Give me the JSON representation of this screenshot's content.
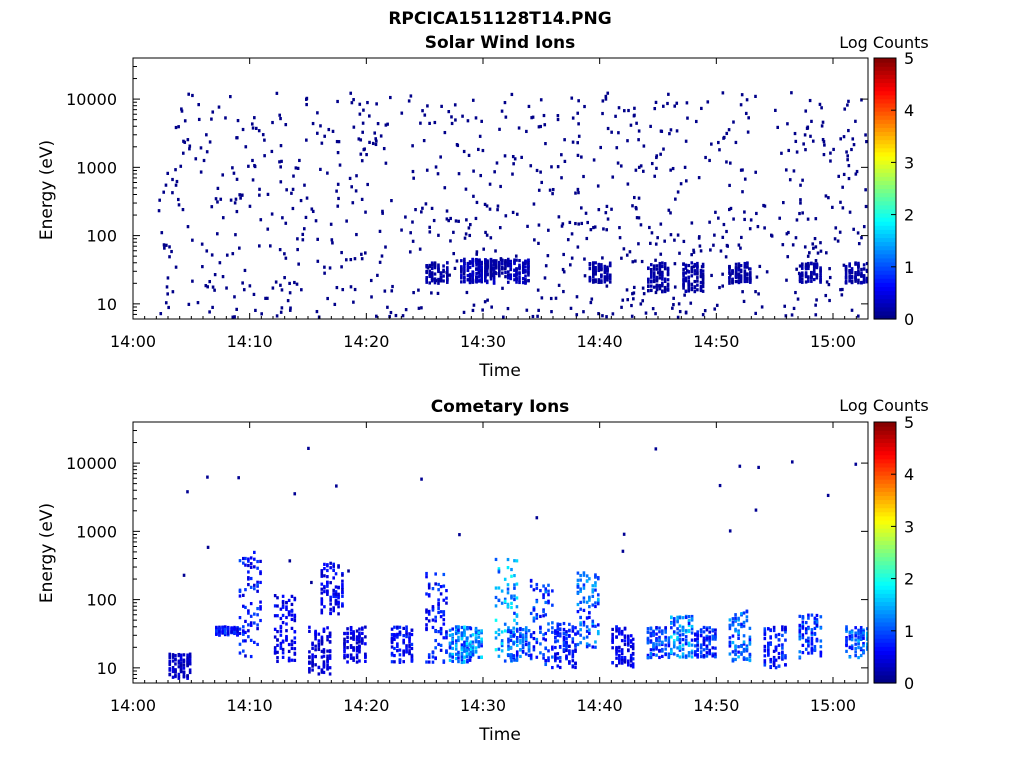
{
  "figure": {
    "title": "RPCICA151128T14.PNG"
  },
  "colorbar": {
    "label": "Log Counts",
    "min": 0,
    "max": 5,
    "ticks": [
      "0",
      "1",
      "2",
      "3",
      "4",
      "5"
    ],
    "colormap": [
      "#00007f",
      "#0000ff",
      "#007fff",
      "#00ffff",
      "#7fff7f",
      "#ffff00",
      "#ff7f00",
      "#ff0000",
      "#7f0000"
    ]
  },
  "chart_data": [
    {
      "type": "heatmap",
      "title": "Solar Wind Ions",
      "xlabel": "Time",
      "ylabel": "Energy (eV)",
      "xlim_minutes": [
        0,
        63
      ],
      "ylim": [
        6,
        40000
      ],
      "y_scale": "log",
      "x_ticks": [
        "14:00",
        "14:10",
        "14:20",
        "14:30",
        "14:40",
        "14:50",
        "15:00"
      ],
      "y_ticks": [
        "10",
        "100",
        "1000",
        "10000"
      ],
      "colorbar_label": "Log Counts",
      "clim": [
        0,
        5
      ],
      "description_level": "sparse isolated single counts across all energies (≈10–30000 eV), denser low-energy patches (≈10–40 eV) at 14:29–14:31, 14:33 and 14:40–14:52",
      "patches": [
        {
          "t": "14:26",
          "emin": 20,
          "emax": 40,
          "log_counts": 0.2
        },
        {
          "t": "14:29",
          "emin": 20,
          "emax": 45,
          "log_counts": 0.3
        },
        {
          "t": "14:30",
          "emin": 20,
          "emax": 45,
          "log_counts": 0.3
        },
        {
          "t": "14:31",
          "emin": 25,
          "emax": 45,
          "log_counts": 0.2
        },
        {
          "t": "14:33",
          "emin": 20,
          "emax": 45,
          "log_counts": 0.3
        },
        {
          "t": "14:40",
          "emin": 20,
          "emax": 40,
          "log_counts": 0.2
        },
        {
          "t": "14:45",
          "emin": 15,
          "emax": 40,
          "log_counts": 0.2
        },
        {
          "t": "14:48",
          "emin": 15,
          "emax": 40,
          "log_counts": 0.2
        },
        {
          "t": "14:52",
          "emin": 20,
          "emax": 40,
          "log_counts": 0.2
        },
        {
          "t": "14:58",
          "emin": 20,
          "emax": 40,
          "log_counts": 0.2
        },
        {
          "t": "15:02",
          "emin": 20,
          "emax": 40,
          "log_counts": 0.2
        }
      ]
    },
    {
      "type": "heatmap",
      "title": "Cometary Ions",
      "xlabel": "Time",
      "ylabel": "Energy (eV)",
      "xlim_minutes": [
        0,
        63
      ],
      "ylim": [
        6,
        40000
      ],
      "y_scale": "log",
      "x_ticks": [
        "14:00",
        "14:10",
        "14:20",
        "14:30",
        "14:40",
        "14:50",
        "15:00"
      ],
      "y_ticks": [
        "10",
        "100",
        "1000",
        "10000"
      ],
      "colorbar_label": "Log Counts",
      "clim": [
        0,
        5
      ],
      "description_level": "periodic bursts of cometary ions, mostly 10–60 eV, some extending to ~500 eV",
      "bursts": [
        {
          "t": "14:04",
          "emin": 7,
          "emax": 16,
          "log_counts": 0.4
        },
        {
          "t": "14:08",
          "emin": 30,
          "emax": 40,
          "log_counts": 0.8
        },
        {
          "t": "14:10",
          "emin": 14,
          "emax": 500,
          "log_counts": 0.8
        },
        {
          "t": "14:13",
          "emin": 12,
          "emax": 120,
          "log_counts": 0.6
        },
        {
          "t": "14:16",
          "emin": 8,
          "emax": 40,
          "log_counts": 0.5
        },
        {
          "t": "14:17",
          "emin": 60,
          "emax": 350,
          "log_counts": 0.6
        },
        {
          "t": "14:19",
          "emin": 12,
          "emax": 40,
          "log_counts": 0.5
        },
        {
          "t": "14:23",
          "emin": 12,
          "emax": 40,
          "log_counts": 0.7
        },
        {
          "t": "14:26",
          "emin": 12,
          "emax": 250,
          "log_counts": 0.8
        },
        {
          "t": "14:28",
          "emin": 12,
          "emax": 40,
          "log_counts": 1.3
        },
        {
          "t": "14:29",
          "emin": 14,
          "emax": 40,
          "log_counts": 1.4
        },
        {
          "t": "14:32",
          "emin": 12,
          "emax": 400,
          "log_counts": 1.5
        },
        {
          "t": "14:33",
          "emin": 14,
          "emax": 40,
          "log_counts": 1.2
        },
        {
          "t": "14:35",
          "emin": 10,
          "emax": 200,
          "log_counts": 1.0
        },
        {
          "t": "14:37",
          "emin": 10,
          "emax": 45,
          "log_counts": 0.8
        },
        {
          "t": "14:39",
          "emin": 20,
          "emax": 250,
          "log_counts": 1.2
        },
        {
          "t": "14:42",
          "emin": 10,
          "emax": 40,
          "log_counts": 0.6
        },
        {
          "t": "14:45",
          "emin": 14,
          "emax": 40,
          "log_counts": 1.0
        },
        {
          "t": "14:47",
          "emin": 14,
          "emax": 60,
          "log_counts": 1.4
        },
        {
          "t": "14:49",
          "emin": 14,
          "emax": 40,
          "log_counts": 0.9
        },
        {
          "t": "14:52",
          "emin": 12,
          "emax": 70,
          "log_counts": 1.2
        },
        {
          "t": "14:55",
          "emin": 10,
          "emax": 40,
          "log_counts": 0.8
        },
        {
          "t": "14:58",
          "emin": 14,
          "emax": 60,
          "log_counts": 1.0
        },
        {
          "t": "15:02",
          "emin": 14,
          "emax": 40,
          "log_counts": 1.2
        }
      ]
    }
  ]
}
